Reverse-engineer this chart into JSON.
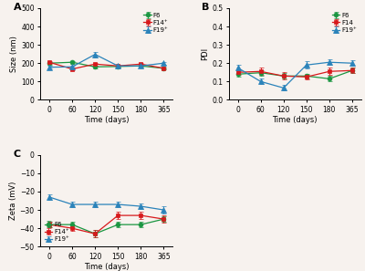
{
  "time": [
    0,
    60,
    120,
    150,
    180,
    365
  ],
  "time_pos": [
    0,
    1,
    2,
    3,
    4,
    5
  ],
  "size_F6": [
    200,
    205,
    180,
    182,
    185,
    172
  ],
  "size_F6_err": [
    8,
    8,
    7,
    6,
    6,
    5
  ],
  "size_F14": [
    205,
    168,
    195,
    185,
    195,
    172
  ],
  "size_F14_err": [
    8,
    8,
    8,
    6,
    6,
    5
  ],
  "size_F19": [
    178,
    180,
    248,
    185,
    185,
    200
  ],
  "size_F19_err": [
    8,
    8,
    15,
    8,
    8,
    8
  ],
  "pdi_F6": [
    0.14,
    0.148,
    0.13,
    0.13,
    0.115,
    0.16
  ],
  "pdi_F6_err": [
    0.015,
    0.015,
    0.015,
    0.012,
    0.015,
    0.015
  ],
  "pdi_F14": [
    0.15,
    0.155,
    0.13,
    0.125,
    0.155,
    0.16
  ],
  "pdi_F14_err": [
    0.015,
    0.02,
    0.02,
    0.012,
    0.02,
    0.015
  ],
  "pdi_F19": [
    0.175,
    0.1,
    0.065,
    0.19,
    0.205,
    0.2
  ],
  "pdi_F19_err": [
    0.015,
    0.015,
    0.015,
    0.02,
    0.015,
    0.015
  ],
  "zeta_F6": [
    -38,
    -38,
    -43,
    -38,
    -38,
    -35
  ],
  "zeta_F6_err": [
    1.5,
    1.5,
    2,
    1.5,
    1.5,
    1.5
  ],
  "zeta_F14": [
    -38,
    -40,
    -43,
    -33,
    -33,
    -35
  ],
  "zeta_F14_err": [
    1.5,
    1.5,
    2,
    2,
    2,
    2
  ],
  "zeta_F19": [
    -23,
    -27,
    -27,
    -27,
    -28,
    -30
  ],
  "zeta_F19_err": [
    1.5,
    1.5,
    1.5,
    1.5,
    1.5,
    2
  ],
  "color_F6": "#1a9641",
  "color_F14": "#d7191c",
  "color_F19": "#2b83ba",
  "label_F6": "F6",
  "label_F14A": "F14⁺",
  "label_F14B": "F14",
  "label_F19": "F19⁺",
  "xlabel": "Time (days)",
  "ylabel_A": "Size (nm)",
  "ylabel_B": "PDI",
  "ylabel_C": "Zeta (mV)",
  "xticklabels": [
    "0",
    "60",
    "120",
    "150",
    "180",
    "365"
  ],
  "ylim_A": [
    0,
    500
  ],
  "yticks_A": [
    0,
    100,
    200,
    300,
    400,
    500
  ],
  "ylim_B": [
    0.0,
    0.5
  ],
  "yticks_B": [
    0.0,
    0.1,
    0.2,
    0.3,
    0.4,
    0.5
  ],
  "ylim_C": [
    -50,
    0
  ],
  "yticks_C": [
    -50,
    -40,
    -30,
    -20,
    -10,
    0
  ],
  "panel_labels": [
    "A",
    "B",
    "C"
  ],
  "bg_color": "#f7f2ee"
}
